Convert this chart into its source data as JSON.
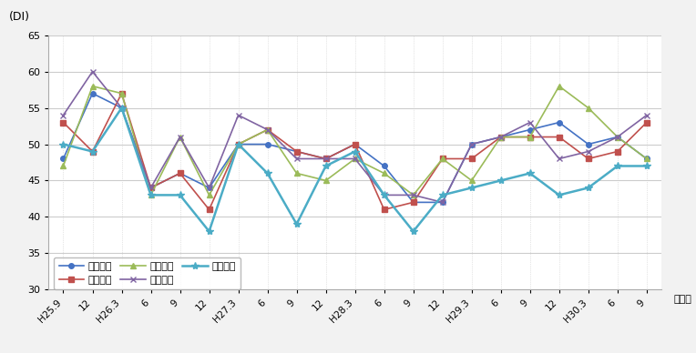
{
  "x_labels": [
    "H25.9",
    "12",
    "H26.3",
    "6",
    "9",
    "12",
    "H27.3",
    "6",
    "9",
    "12",
    "H28.3",
    "6",
    "9",
    "12",
    "H29.3",
    "6",
    "9",
    "12",
    "H30.3",
    "6",
    "9"
  ],
  "series": {
    "県北地域": {
      "color": "#4472C4",
      "marker": "o",
      "markersize": 4,
      "linewidth": 1.2,
      "values": [
        48,
        57,
        55,
        44,
        46,
        44,
        50,
        50,
        49,
        48,
        50,
        47,
        42,
        42,
        50,
        51,
        52,
        53,
        50,
        51,
        48
      ]
    },
    "県央地域": {
      "color": "#C0504D",
      "marker": "s",
      "markersize": 4,
      "linewidth": 1.2,
      "values": [
        53,
        49,
        57,
        44,
        46,
        41,
        50,
        52,
        49,
        48,
        50,
        41,
        42,
        48,
        48,
        51,
        51,
        51,
        48,
        49,
        53
      ]
    },
    "鹿行地域": {
      "color": "#9BBB59",
      "marker": "^",
      "markersize": 5,
      "linewidth": 1.2,
      "values": [
        47,
        58,
        57,
        43,
        51,
        43,
        50,
        52,
        46,
        45,
        48,
        46,
        43,
        48,
        45,
        51,
        51,
        58,
        55,
        51,
        48
      ]
    },
    "県南地域": {
      "color": "#8064A2",
      "marker": "x",
      "markersize": 5,
      "linewidth": 1.2,
      "values": [
        54,
        60,
        55,
        44,
        51,
        44,
        54,
        52,
        48,
        48,
        48,
        43,
        43,
        42,
        50,
        51,
        53,
        48,
        49,
        51,
        54
      ]
    },
    "県西地域": {
      "color": "#4BACC6",
      "marker": "*",
      "markersize": 6,
      "linewidth": 1.8,
      "values": [
        50,
        49,
        55,
        43,
        43,
        38,
        50,
        46,
        39,
        47,
        49,
        43,
        38,
        43,
        44,
        45,
        46,
        43,
        44,
        47,
        47
      ]
    }
  },
  "ylim": [
    30,
    65
  ],
  "yticks": [
    30,
    35,
    40,
    45,
    50,
    55,
    60,
    65
  ],
  "ylabel": "(DI)",
  "xlabel": "（月）",
  "legend_order": [
    "県北地域",
    "県央地域",
    "鹿行地域",
    "県南地域",
    "県西地域"
  ],
  "bg_color": "#F2F2F2",
  "plot_bg": "#FFFFFF"
}
